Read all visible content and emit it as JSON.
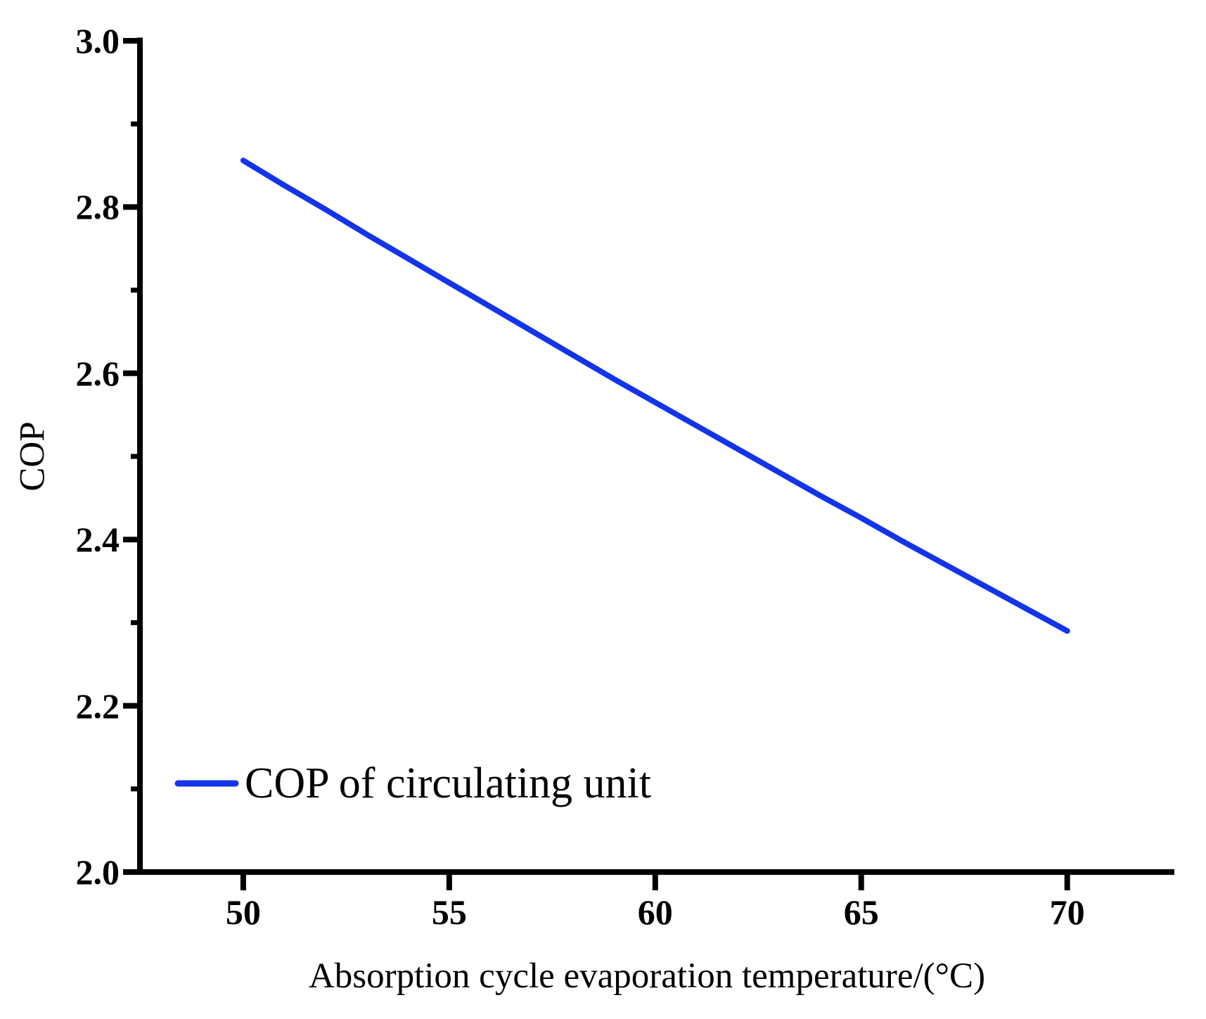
{
  "figure": {
    "background_color": "#ffffff",
    "axis_color": "#000000"
  },
  "chart_data": {
    "type": "line",
    "title": "",
    "xlabel": "Absorption cycle evaporation temperature/(°C)",
    "ylabel": "COP",
    "xlim": [
      47.1,
      72.6
    ],
    "ylim": [
      2.0,
      3.0
    ],
    "grid": false,
    "x_ticks": {
      "values": [
        50,
        55,
        60,
        65,
        70
      ],
      "labels": [
        "50",
        "55",
        "60",
        "65",
        "70"
      ]
    },
    "y_ticks": {
      "major_values": [
        2.0,
        2.2,
        2.4,
        2.6,
        2.8,
        3.0
      ],
      "major_labels": [
        "2.0",
        "2.2",
        "2.4",
        "2.6",
        "2.8",
        "3.0"
      ],
      "minor_values": [
        2.1,
        2.3,
        2.5,
        2.7,
        2.9
      ]
    },
    "legend": {
      "label": "COP of circulating unit",
      "position": "inside-lower-left"
    },
    "series": [
      {
        "name": "COP of circulating unit",
        "color": "#1334eb",
        "x": [
          50,
          51,
          52,
          53,
          54,
          55,
          56,
          57,
          58,
          59,
          60,
          61,
          62,
          63,
          64,
          65,
          66,
          67,
          68,
          69,
          70
        ],
        "values": [
          2.856,
          2.826,
          2.797,
          2.767,
          2.738,
          2.709,
          2.68,
          2.651,
          2.622,
          2.593,
          2.565,
          2.537,
          2.509,
          2.481,
          2.453,
          2.426,
          2.398,
          2.371,
          2.344,
          2.317,
          2.29
        ]
      }
    ],
    "points_at_major_x": {
      "50": 2.856,
      "55": 2.709,
      "60": 2.565,
      "65": 2.426,
      "70": 2.29
    }
  }
}
